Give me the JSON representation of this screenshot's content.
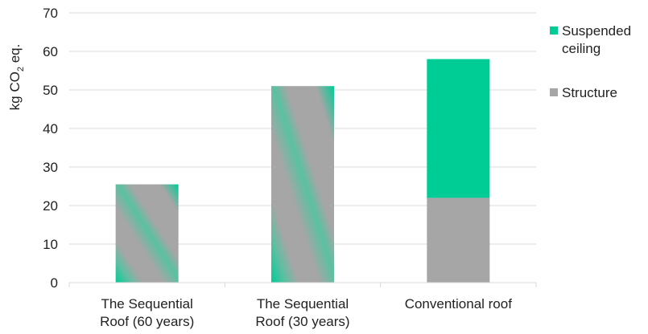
{
  "chart_data": {
    "type": "bar",
    "stacked": true,
    "categories": [
      [
        "The Sequential",
        "Roof (60 years)"
      ],
      [
        "The Sequential",
        "Roof (30 years)"
      ],
      [
        "Conventional roof"
      ]
    ],
    "series": [
      {
        "name": "Structure",
        "values": [
          25.5,
          51,
          22
        ],
        "color": "#a6a6a6"
      },
      {
        "name": "Suspended ceiling",
        "values": [
          0,
          0,
          36
        ],
        "color": "#00cc96"
      }
    ],
    "mixed_fill": [
      true,
      true,
      false
    ],
    "ylabel": "kg CO",
    "ylabel_subscript": "2",
    "ylabel_suffix": " eq.",
    "ylim": [
      0,
      70
    ],
    "yticks": [
      0,
      10,
      20,
      30,
      40,
      50,
      60,
      70
    ],
    "grid": true,
    "legend": {
      "position": "right",
      "entries": [
        {
          "lines": [
            "Suspended",
            "ceiling"
          ],
          "color": "#00cc96"
        },
        {
          "lines": [
            "Structure"
          ],
          "color": "#a6a6a6"
        }
      ]
    }
  }
}
